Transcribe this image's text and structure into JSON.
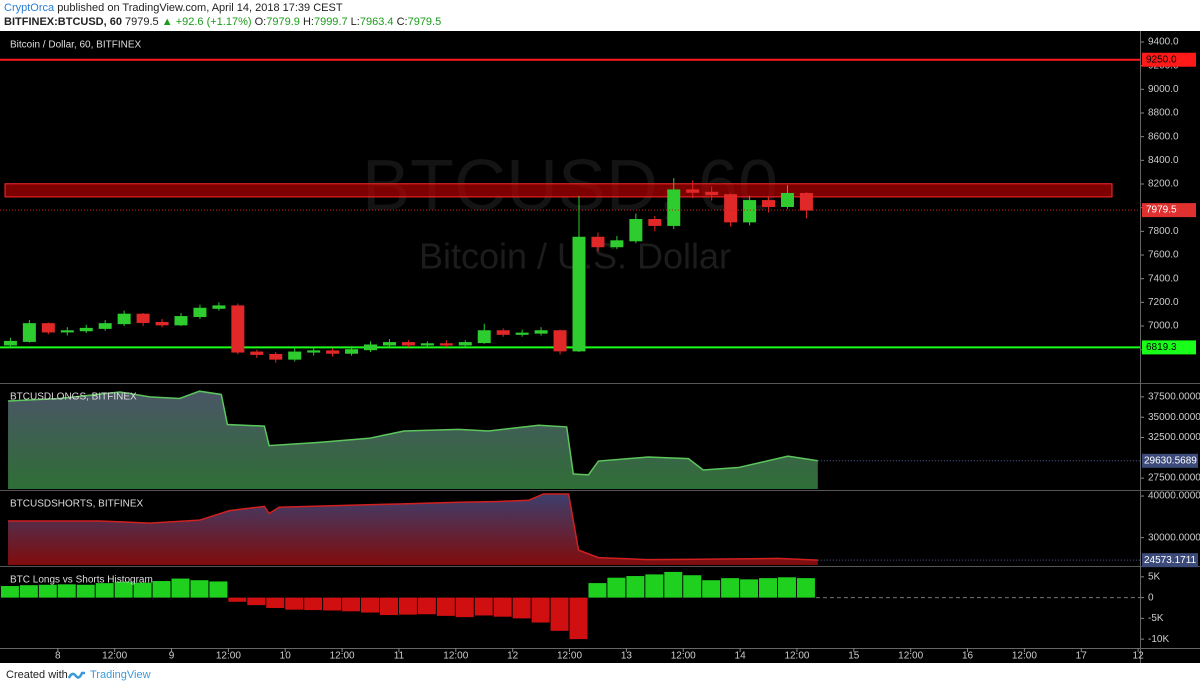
{
  "header": {
    "author": "CryptOrca",
    "published": "published on TradingView.com, April 14, 2018 17:39 CEST",
    "symbol": "BITFINEX:BTCUSD, 60",
    "price": "7979.5",
    "arrow": "▲",
    "change": "+92.6 (+1.17%)",
    "open_label": "O:",
    "open": "7979.9",
    "high_label": "H:",
    "high": "7999.7",
    "low_label": "L:",
    "low": "7963.4",
    "close_label": "C:",
    "close": "7979.5"
  },
  "footer": {
    "created": "Created with",
    "brand": "TradingView"
  },
  "chart_data": [
    {
      "type": "candlestick",
      "title": "Bitcoin / Dollar, 60, BITFINEX",
      "watermark": "BTCUSD, 60",
      "watermark_sub": "Bitcoin / U.S. Dollar",
      "up_color": "#2ecc2e",
      "down_color": "#e02828",
      "x": [
        -10,
        -6,
        -2,
        2,
        6,
        10,
        14,
        18,
        22,
        26,
        30,
        34,
        38,
        42,
        46,
        50,
        54,
        58,
        62,
        66,
        70,
        74,
        78,
        82,
        86,
        90,
        94,
        98,
        102,
        106,
        110,
        114,
        118,
        122,
        126,
        130,
        134,
        138,
        142,
        146,
        150,
        154,
        158
      ],
      "open": [
        6840,
        6870,
        7020,
        6950,
        6960,
        6980,
        7020,
        7100,
        7030,
        7010,
        7080,
        7150,
        7170,
        6780,
        6760,
        6720,
        6780,
        6790,
        6770,
        6800,
        6840,
        6860,
        6840,
        6850,
        6840,
        6860,
        6960,
        6930,
        6940,
        6960,
        6790,
        7750,
        7670,
        7720,
        7900,
        7850,
        8150,
        8130,
        8110,
        7880,
        8060,
        8010,
        8120
      ],
      "high": [
        6900,
        7050,
        7030,
        6990,
        7010,
        7050,
        7130,
        7110,
        7060,
        7110,
        7180,
        7200,
        7190,
        6800,
        6780,
        6810,
        6820,
        6810,
        6830,
        6870,
        6890,
        6880,
        6870,
        6880,
        6880,
        7020,
        6980,
        6970,
        6990,
        6970,
        8100,
        7790,
        7760,
        7950,
        7930,
        8250,
        8230,
        8180,
        8120,
        8100,
        8090,
        8190,
        8130
      ],
      "low": [
        6820,
        6860,
        6930,
        6920,
        6940,
        6960,
        7000,
        7000,
        6990,
        7000,
        7060,
        7130,
        6760,
        6730,
        6690,
        6700,
        6750,
        6740,
        6750,
        6780,
        6820,
        6820,
        6820,
        6820,
        6820,
        6850,
        6910,
        6910,
        6920,
        6760,
        6780,
        7630,
        7650,
        7700,
        7800,
        7820,
        8080,
        8060,
        7840,
        7850,
        7960,
        7990,
        7910
      ],
      "close": [
        6870,
        7020,
        6950,
        6960,
        6980,
        7020,
        7100,
        7030,
        7010,
        7080,
        7150,
        7170,
        6780,
        6760,
        6720,
        6780,
        6790,
        6770,
        6800,
        6840,
        6860,
        6840,
        6850,
        6840,
        6860,
        6960,
        6930,
        6940,
        6960,
        6790,
        7750,
        7670,
        7720,
        7900,
        7850,
        8150,
        8130,
        8110,
        7880,
        8060,
        8010,
        8120,
        7979.5
      ],
      "zone": [
        8091,
        8202
      ],
      "levels": [
        {
          "value": 9250,
          "label": "9250.0",
          "color": "#ff1a1a"
        },
        {
          "value": 6819.3,
          "color": "#1aff1a"
        }
      ],
      "xlim": [
        -12.2,
        228.4
      ],
      "xticks": [
        {
          "value": 0,
          "label": "8"
        },
        {
          "value": 12,
          "label": "12:00"
        },
        {
          "value": 24,
          "label": "9"
        },
        {
          "value": 36,
          "label": "12:00"
        },
        {
          "value": 48,
          "label": "10"
        },
        {
          "value": 60,
          "label": "12:00"
        },
        {
          "value": 72,
          "label": "11"
        },
        {
          "value": 84,
          "label": "12:00"
        },
        {
          "value": 96,
          "label": "12"
        },
        {
          "value": 108,
          "label": "12:00"
        },
        {
          "value": 120,
          "label": "13"
        },
        {
          "value": 132,
          "label": "12:00"
        },
        {
          "value": 144,
          "label": "14"
        },
        {
          "value": 156,
          "label": "12:00"
        },
        {
          "value": 168,
          "label": "15"
        },
        {
          "value": 180,
          "label": "12:00"
        },
        {
          "value": 192,
          "label": "16"
        },
        {
          "value": 204,
          "label": "12:00"
        },
        {
          "value": 216,
          "label": "17"
        },
        {
          "value": 228,
          "label": "12"
        }
      ],
      "ylim": [
        6527,
        9476
      ],
      "yticks": [
        {
          "value": 6800,
          "label": "6800.0"
        },
        {
          "value": 7000,
          "label": "7000.0"
        },
        {
          "value": 7200,
          "label": "7200.0"
        },
        {
          "value": 7400,
          "label": "7400.0"
        },
        {
          "value": 7600,
          "label": "7600.0"
        },
        {
          "value": 7800,
          "label": "7800.0"
        },
        {
          "value": 8000,
          "label": "8000.0"
        },
        {
          "value": 8200,
          "label": "8200.0"
        },
        {
          "value": 8400,
          "label": "8400.0"
        },
        {
          "value": 8600,
          "label": "8600.0"
        },
        {
          "value": 8800,
          "label": "8800.0"
        },
        {
          "value": 9000,
          "label": "9000.0"
        },
        {
          "value": 9200,
          "label": "9200.0"
        },
        {
          "value": 9400,
          "label": "9400.0"
        }
      ]
    },
    {
      "type": "area",
      "title": "BTCUSDLONGS, BITFINEX",
      "color": "#5cc65c",
      "fill_top": "#4a5566",
      "fill_bottom": "#2f6e36",
      "x": [
        -10.5,
        0.4,
        13.1,
        19.4,
        25.7,
        29.9,
        34.5,
        35.8,
        43.6,
        44.6,
        55.2,
        65.7,
        73.1,
        84.6,
        90.9,
        101.5,
        107.4,
        108.8,
        112,
        114.1,
        124.6,
        133.1,
        136.2,
        143.6,
        154.1,
        160.4
      ],
      "values": [
        37000,
        37300,
        38100,
        37500,
        37300,
        38200,
        37800,
        34100,
        33900,
        31500,
        31900,
        32400,
        33300,
        33500,
        33300,
        34000,
        33800,
        28000,
        27900,
        29600,
        30100,
        29900,
        28500,
        28800,
        30200,
        29630.5689
      ],
      "ylim": [
        26159,
        38963
      ],
      "yticks": [
        {
          "value": 27500,
          "label": "27500.0000"
        },
        {
          "value": 32500,
          "label": "32500.0000"
        },
        {
          "value": 35000,
          "label": "35000.0000"
        },
        {
          "value": 37500,
          "label": "37500.0000"
        }
      ]
    },
    {
      "type": "area",
      "title": "BTCUSDSHORTS, BITFINEX",
      "color": "#d02020",
      "fill_top": "#3c3f6e",
      "fill_bottom": "#800c0c",
      "x": [
        -10.5,
        8.8,
        19.4,
        29.9,
        36.2,
        43.6,
        44.6,
        46.7,
        61.5,
        72,
        84.6,
        93,
        99.4,
        102.5,
        107.8,
        109.9,
        114.1,
        124.6,
        135.2,
        152,
        160.4
      ],
      "values": [
        34000,
        34000,
        33500,
        34200,
        36500,
        37500,
        35800,
        37300,
        37800,
        38100,
        38500,
        38700,
        39000,
        40500,
        40500,
        27000,
        25200,
        24700,
        24800,
        25000,
        24573.1711
      ],
      "ylim": [
        23415,
        40976
      ],
      "yticks": [
        {
          "value": 30000,
          "label": "30000.0000"
        },
        {
          "value": 40000,
          "label": "40000.0000"
        }
      ]
    },
    {
      "type": "bar",
      "title": "BTC Longs vs Shorts Histogram",
      "up_color": "#1fd01f",
      "down_color": "#d01010",
      "x": [
        -10,
        -6,
        -2,
        2,
        6,
        10,
        14,
        18,
        22,
        26,
        30,
        34,
        38,
        42,
        46,
        50,
        54,
        58,
        62,
        66,
        70,
        74,
        78,
        82,
        86,
        90,
        94,
        98,
        102,
        106,
        110,
        114,
        118,
        122,
        126,
        130,
        134,
        138,
        142,
        146,
        150,
        154,
        158
      ],
      "values": [
        2800,
        3000,
        3100,
        3200,
        3100,
        3500,
        3800,
        3600,
        4000,
        4600,
        4200,
        3900,
        -1000,
        -1800,
        -2500,
        -2900,
        -3000,
        -3100,
        -3300,
        -3600,
        -4200,
        -4100,
        -4000,
        -4400,
        -4700,
        -4300,
        -4600,
        -5000,
        -6000,
        -8000,
        -10000,
        3500,
        4800,
        5200,
        5600,
        6200,
        5400,
        4200,
        4700,
        4400,
        4700,
        4900,
        4700
      ],
      "ylim": [
        -11900,
        7140
      ],
      "yticks": [
        {
          "value": -10000,
          "label": "-10K"
        },
        {
          "value": -5000,
          "label": "-5K"
        },
        0,
        {
          "value": 5000,
          "label": "5K"
        }
      ]
    }
  ]
}
